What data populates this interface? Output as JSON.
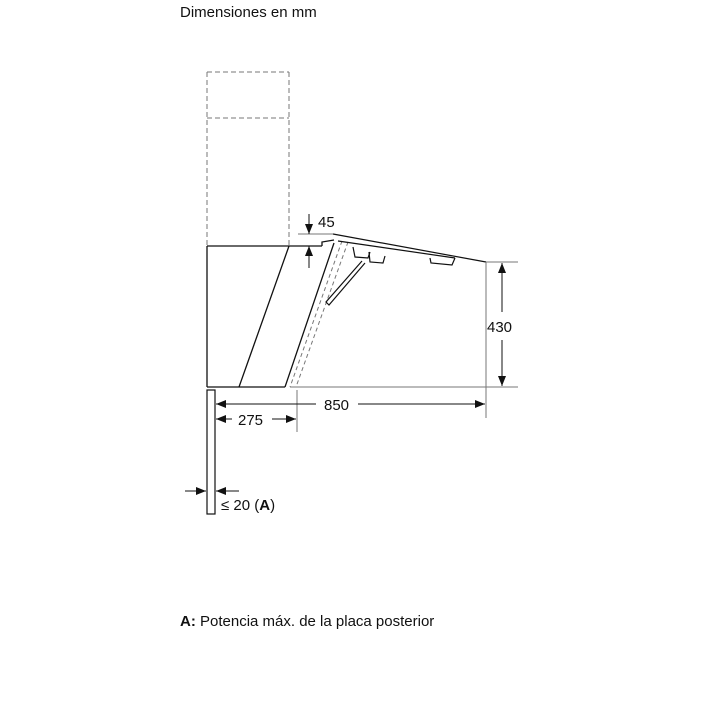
{
  "title": "Dimensiones en mm",
  "dimensions": {
    "glass_offset": "45",
    "height": "430",
    "depth": "850",
    "body_depth": "275",
    "back_panel": "≤ 20 (",
    "back_panel_ref": "A",
    "back_panel_close": ")"
  },
  "footnote": {
    "key": "A:",
    "text": " Potencia máx. de la placa posterior"
  }
}
